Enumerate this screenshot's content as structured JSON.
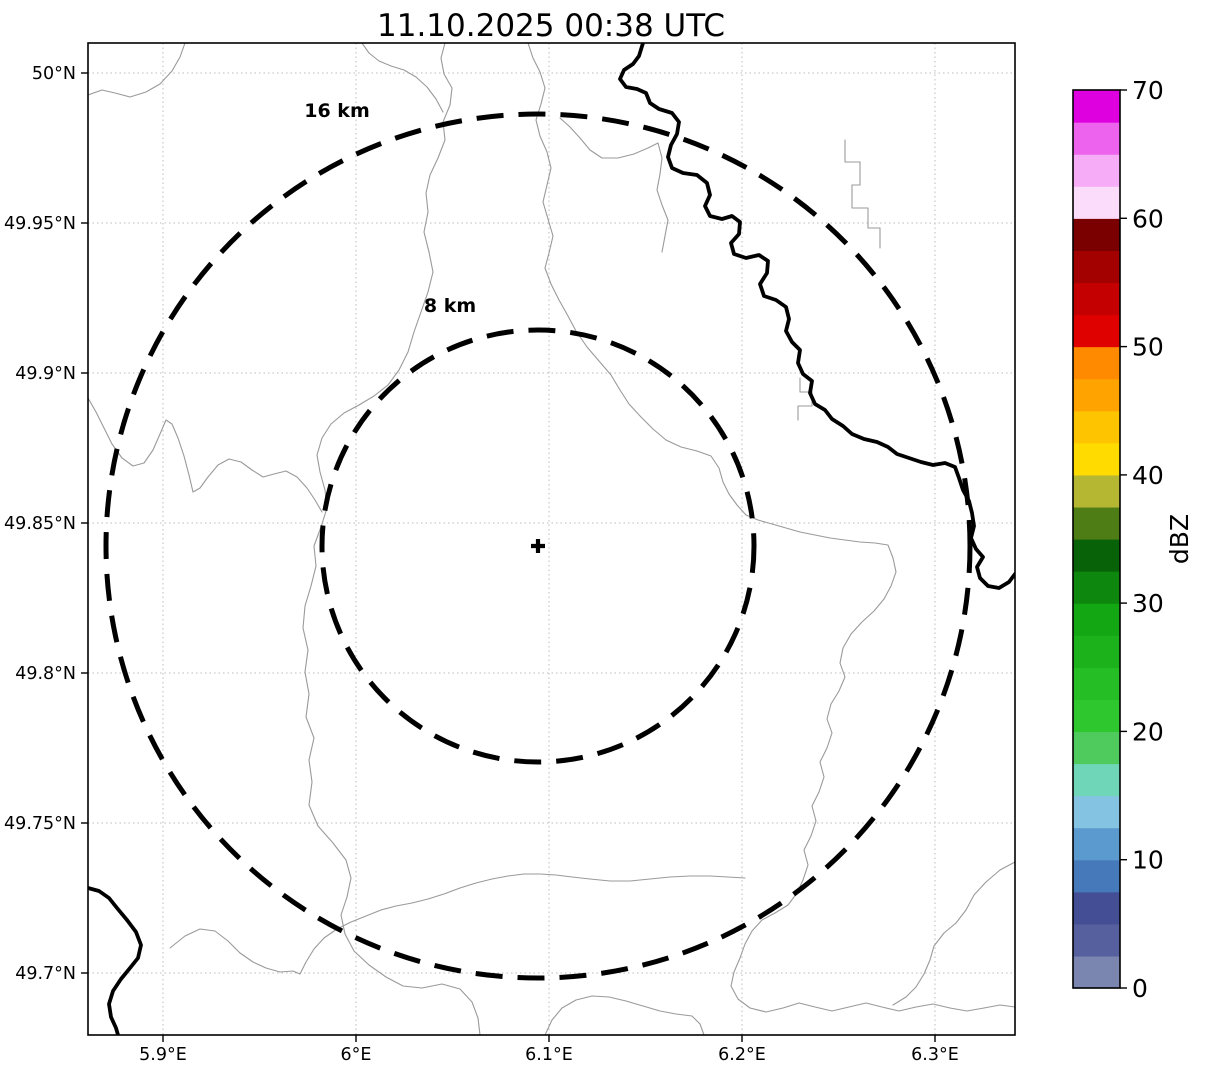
{
  "title": "11.10.2025 00:38 UTC",
  "axes": {
    "lat_ticks": [
      "50°N",
      "49.95°N",
      "49.9°N",
      "49.85°N",
      "49.8°N",
      "49.75°N",
      "49.7°N"
    ],
    "lon_ticks": [
      "5.9°E",
      "6°E",
      "6.1°E",
      "6.2°E",
      "6.3°E"
    ]
  },
  "rings": {
    "outer_label": "16 km",
    "inner_label": "8 km"
  },
  "colorbar": {
    "label": "dBZ",
    "unit": "dBZ",
    "min": 0,
    "max": 70,
    "band_step_dbz": 2.5,
    "tick_labels": [
      "0",
      "10",
      "20",
      "30",
      "40",
      "50",
      "60",
      "70"
    ],
    "band_colors_bottom_to_top": [
      "#7B86B0",
      "#56609E",
      "#434E95",
      "#4679BA",
      "#5A9ACE",
      "#85C3E2",
      "#70D6B8",
      "#4FCB5E",
      "#2EC72E",
      "#25BE25",
      "#1CB21C",
      "#13A813",
      "#0D870D",
      "#086308",
      "#4E7D15",
      "#B5B733",
      "#FFDB00",
      "#FFC400",
      "#FFA300",
      "#FF8A00",
      "#DF0000",
      "#C40000",
      "#A30000",
      "#7A0000",
      "#FBDCFB",
      "#F7ACF7",
      "#EE63EE",
      "#DE00DE"
    ]
  }
}
